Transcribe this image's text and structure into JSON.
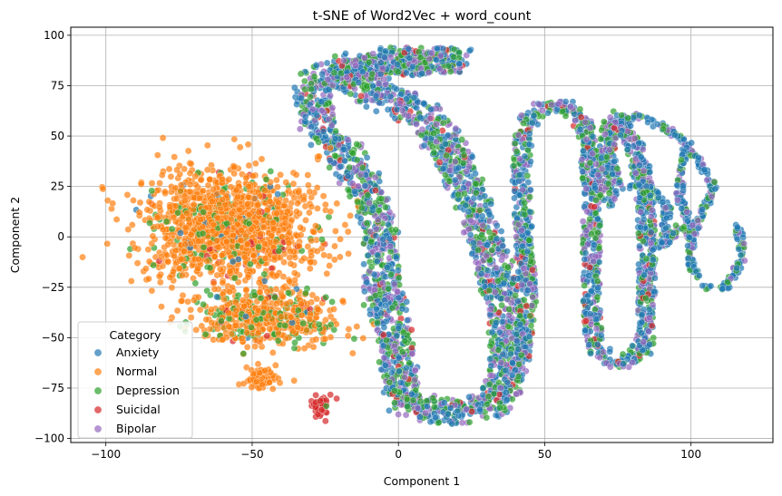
{
  "chart_data": {
    "type": "scatter",
    "title": "t-SNE of Word2Vec + word_count",
    "xlabel": "Component 1",
    "ylabel": "Component 2",
    "xlim": [
      -112,
      128
    ],
    "ylim": [
      -102,
      104
    ],
    "xticks": [
      -100,
      -50,
      0,
      50,
      100
    ],
    "xtick_labels": [
      "−100",
      "−50",
      "0",
      "50",
      "100"
    ],
    "yticks": [
      -100,
      -75,
      -50,
      -25,
      0,
      25,
      50,
      75,
      100
    ],
    "ytick_labels": [
      "−100",
      "−75",
      "−50",
      "−25",
      "0",
      "25",
      "50",
      "75",
      "100"
    ],
    "grid": true,
    "legend": {
      "title": "Category",
      "placement": "lower-left",
      "entries": [
        {
          "name": "Anxiety",
          "color": "#1f77b4"
        },
        {
          "name": "Normal",
          "color": "#ff7f0e"
        },
        {
          "name": "Depression",
          "color": "#2ca02c"
        },
        {
          "name": "Suicidal",
          "color": "#d62728"
        },
        {
          "name": "Bipolar",
          "color": "#9467bd"
        }
      ]
    },
    "marker_alpha": 0.7,
    "clusters": [
      {
        "name": "Normal main blob",
        "shape": "blob",
        "center": [
          -58,
          5
        ],
        "spread": [
          28,
          28
        ],
        "count": 1500,
        "mix": {
          "Normal": 0.86,
          "Depression": 0.1,
          "Anxiety": 0.02,
          "Suicidal": 0.02
        }
      },
      {
        "name": "Normal lower lobe",
        "shape": "blob",
        "center": [
          -45,
          -40
        ],
        "spread": [
          25,
          14
        ],
        "count": 550,
        "mix": {
          "Normal": 0.7,
          "Depression": 0.24,
          "Anxiety": 0.03,
          "Suicidal": 0.03
        }
      },
      {
        "name": "Normal small island",
        "shape": "blob",
        "center": [
          -47,
          -70
        ],
        "spread": [
          6,
          5
        ],
        "count": 80,
        "mix": {
          "Normal": 1.0
        }
      },
      {
        "name": "Suicidal island",
        "shape": "blob",
        "center": [
          -26,
          -84
        ],
        "spread": [
          3,
          6
        ],
        "count": 45,
        "mix": {
          "Suicidal": 0.9,
          "Depression": 0.1
        }
      },
      {
        "name": "Big C-shaped band",
        "shape": "band",
        "width": 12,
        "count": 2600,
        "path": [
          [
            20,
            88
          ],
          [
            0,
            88
          ],
          [
            -20,
            84
          ],
          [
            -30,
            74
          ],
          [
            -28,
            58
          ],
          [
            -18,
            40
          ],
          [
            -10,
            22
          ],
          [
            -6,
            0
          ],
          [
            -6,
            -20
          ],
          [
            -2,
            -45
          ],
          [
            0,
            -65
          ],
          [
            2,
            -82
          ],
          [
            20,
            -88
          ],
          [
            34,
            -82
          ],
          [
            38,
            -60
          ],
          [
            36,
            -35
          ],
          [
            32,
            -10
          ],
          [
            26,
            15
          ],
          [
            18,
            40
          ],
          [
            10,
            58
          ],
          [
            2,
            66
          ],
          [
            -8,
            72
          ],
          [
            -16,
            78
          ],
          [
            -8,
            84
          ],
          [
            20,
            88
          ]
        ],
        "mix": {
          "Anxiety": 0.42,
          "Depression": 0.28,
          "Bipolar": 0.25,
          "Suicidal": 0.05
        }
      },
      {
        "name": "Middle serpentine band",
        "shape": "band",
        "width": 6,
        "count": 1500,
        "path": [
          [
            42,
            -60
          ],
          [
            44,
            -30
          ],
          [
            43,
            0
          ],
          [
            42,
            30
          ],
          [
            43,
            55
          ],
          [
            50,
            65
          ],
          [
            58,
            65
          ],
          [
            64,
            55
          ],
          [
            66,
            30
          ],
          [
            66,
            0
          ],
          [
            66,
            -30
          ],
          [
            67,
            -55
          ],
          [
            75,
            -63
          ],
          [
            84,
            -55
          ],
          [
            85,
            -25
          ],
          [
            85,
            0
          ],
          [
            84,
            28
          ],
          [
            80,
            48
          ],
          [
            74,
            60
          ],
          [
            71,
            45
          ],
          [
            72,
            15
          ]
        ],
        "mix": {
          "Anxiety": 0.45,
          "Depression": 0.25,
          "Bipolar": 0.25,
          "Suicidal": 0.05
        }
      },
      {
        "name": "Right curl band",
        "shape": "band",
        "width": 2.5,
        "count": 520,
        "path": [
          [
            100,
            45
          ],
          [
            90,
            55
          ],
          [
            80,
            60
          ],
          [
            72,
            55
          ],
          [
            72,
            40
          ],
          [
            76,
            25
          ],
          [
            86,
            25
          ],
          [
            92,
            15
          ],
          [
            90,
            -5
          ],
          [
            96,
            5
          ],
          [
            100,
            0
          ],
          [
            104,
            12
          ],
          [
            108,
            25
          ],
          [
            104,
            35
          ],
          [
            98,
            45
          ],
          [
            96,
            20
          ],
          [
            100,
            5
          ],
          [
            100,
            -15
          ],
          [
            106,
            -25
          ],
          [
            112,
            -25
          ],
          [
            118,
            -10
          ],
          [
            116,
            6
          ]
        ],
        "mix": {
          "Anxiety": 0.6,
          "Bipolar": 0.2,
          "Depression": 0.2
        }
      }
    ]
  }
}
